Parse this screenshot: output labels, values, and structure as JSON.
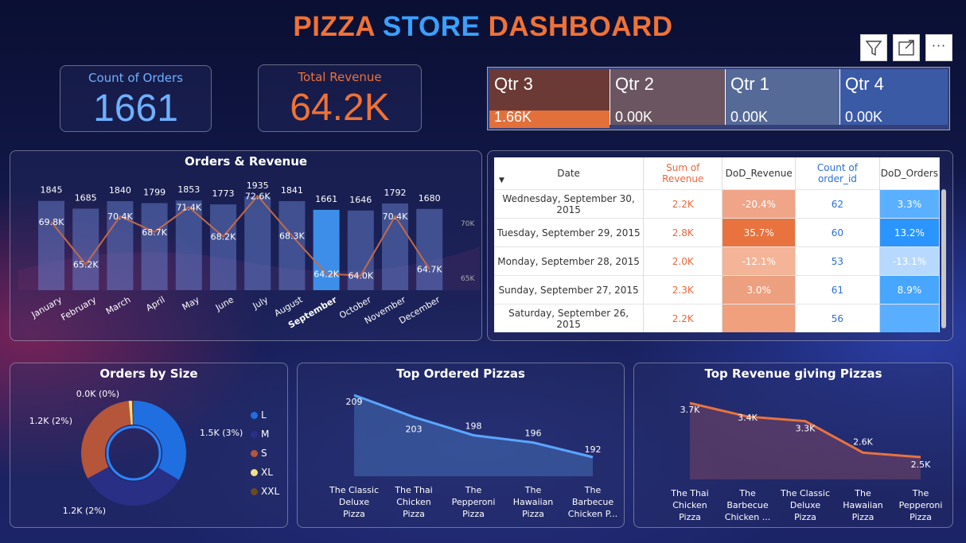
{
  "header": {
    "title_part1": "PIZZA ",
    "title_part2": "STORE",
    "title_part3": " DASHBOARD"
  },
  "toolbar": {
    "filter_icon": "filter-icon",
    "focus_icon": "focus-mode-icon",
    "more_icon": "more-options-icon",
    "more_label": "···"
  },
  "kpis": [
    {
      "label": "Count of Orders",
      "value": "1661",
      "color": "#6fb0ff"
    },
    {
      "label": "Total Revenue",
      "value": "64.2K",
      "color": "#ef7236"
    }
  ],
  "slicer": {
    "items": [
      {
        "label": "Qtr 3",
        "value": "1.66K",
        "fill": 1.0
      },
      {
        "label": "Qtr 2",
        "value": "0.00K",
        "fill": 0
      },
      {
        "label": "Qtr 1",
        "value": "0.00K",
        "fill": 0
      },
      {
        "label": "Qtr 4",
        "value": "0.00K",
        "fill": 0
      }
    ]
  },
  "orders_revenue": {
    "title": "Orders & Revenue"
  },
  "table": {
    "columns": [
      "Date",
      "Sum of Revenue",
      "DoD_Revenue",
      "Count of order_id",
      "DoD_Orders"
    ],
    "rows": [
      [
        "Wednesday, September 30, 2015",
        "2.2K",
        "-20.4%",
        "62",
        "3.3%"
      ],
      [
        "Tuesday, September 29, 2015",
        "2.8K",
        "35.7%",
        "60",
        "13.2%"
      ],
      [
        "Monday, September 28, 2015",
        "2.0K",
        "-12.1%",
        "53",
        "-13.1%"
      ],
      [
        "Sunday, September 27, 2015",
        "2.3K",
        "3.0%",
        "61",
        "8.9%"
      ],
      [
        "Saturday, September 26, 2015",
        "2.2K",
        "",
        "56",
        ""
      ]
    ]
  },
  "size_chart": {
    "title": "Orders by Size"
  },
  "top_orders": {
    "title": "Top Ordered Pizzas"
  },
  "top_revenue": {
    "title": "Top Revenue giving Pizzas"
  },
  "chart_data": [
    {
      "type": "bar",
      "title": "Orders & Revenue",
      "categories": [
        "January",
        "February",
        "March",
        "April",
        "May",
        "June",
        "July",
        "August",
        "September",
        "October",
        "November",
        "December"
      ],
      "series": [
        {
          "values": [
            1845,
            1685,
            1840,
            1799,
            1853,
            1773,
            1935,
            1841,
            1661,
            1646,
            1792,
            1680
          ]
        },
        {
          "values": [
            69.8,
            65.2,
            70.4,
            68.7,
            71.4,
            68.2,
            72.6,
            68.3,
            64.2,
            64.0,
            70.4,
            64.7
          ],
          "labels": [
            "69.8K",
            "65.2K",
            "70.4K",
            "68.7K",
            "71.4K",
            "68.2K",
            "72.6K",
            "68.3K",
            "64.2K",
            "64.0K",
            "70.4K",
            "64.7K"
          ]
        }
      ],
      "y2_ticks": [
        "70K",
        "65K"
      ],
      "highlight": "September"
    },
    {
      "type": "pie",
      "title": "Orders by Size",
      "categories": [
        "L",
        "M",
        "S",
        "XL",
        "XXL"
      ],
      "labels": [
        "1.5K (3%)",
        "1.2K (2%)",
        "1.2K (2%)",
        "0.0K (0%)",
        ""
      ],
      "values": [
        33,
        33,
        31,
        1,
        0.5
      ],
      "colors": [
        "#1f6fe0",
        "#2a2f86",
        "#b5553a",
        "#f3e08a",
        "#6b4a1f"
      ]
    },
    {
      "type": "area",
      "title": "Top Ordered Pizzas",
      "categories": [
        "The Classic Deluxe Pizza",
        "The Thai Chicken Pizza",
        "The Pepperoni Pizza",
        "The Hawaiian Pizza",
        "The Barbecue Chicken P..."
      ],
      "values": [
        209,
        203,
        198,
        196,
        192
      ]
    },
    {
      "type": "area",
      "title": "Top Revenue giving Pizzas",
      "categories": [
        "The Thai Chicken Pizza",
        "The Barbecue Chicken ...",
        "The Classic Deluxe Pizza",
        "The Hawaiian Pizza",
        "The Pepperoni Pizza"
      ],
      "values": [
        3.7,
        3.4,
        3.3,
        2.6,
        2.5
      ],
      "labels": [
        "3.7K",
        "3.4K",
        "3.3K",
        "2.6K",
        "2.5K"
      ]
    }
  ]
}
